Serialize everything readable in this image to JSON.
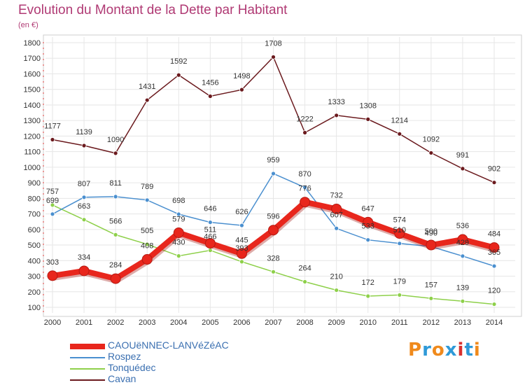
{
  "header": {
    "title": "Evolution du Montant de la Dette par Habitant",
    "subtitle": "(en €)"
  },
  "brand": {
    "text": "Proxiti",
    "colors": [
      "#f08a1c",
      "#2f9ad8",
      "#f08a1c",
      "#2f9ad8",
      "#d8312f",
      "#2f9ad8",
      "#f08a1c"
    ]
  },
  "chart_data": {
    "type": "line",
    "title": "Evolution du Montant de la Dette par Habitant",
    "subtitle": "(en €)",
    "xlabel": "",
    "ylabel": "",
    "ylim": [
      100,
      1800
    ],
    "ytick_step": 100,
    "grid": true,
    "legend_position": "bottom-left",
    "categories": [
      "2000",
      "2001",
      "2002",
      "2003",
      "2004",
      "2005",
      "2006",
      "2007",
      "2008",
      "2009",
      "2010",
      "2011",
      "2012",
      "2013",
      "2014"
    ],
    "series": [
      {
        "name": "CAOUëNNEC-LANVéZéAC",
        "color": "#e8261c",
        "values": [
          303,
          334,
          284,
          408,
          579,
          511,
          445,
          596,
          776,
          732,
          647,
          574,
          500,
          536,
          484
        ],
        "labels": [
          "303",
          "334",
          "284",
          "408",
          "579",
          "511",
          "445",
          "596",
          "776",
          "732",
          "647",
          "574",
          "500",
          "536",
          "484"
        ],
        "emphasis": true
      },
      {
        "name": "Rospez",
        "color": "#4a8fcf",
        "values": [
          699,
          807,
          811,
          789,
          698,
          646,
          626,
          959,
          870,
          607,
          533,
          510,
          490,
          429,
          365
        ],
        "labels": [
          "699",
          "807",
          "811",
          "789",
          "698",
          "646",
          "626",
          "959",
          "870",
          "607",
          "533",
          "510",
          "490",
          "429",
          "365"
        ]
      },
      {
        "name": "Tonquédec",
        "color": "#8ed04a",
        "values": [
          757,
          663,
          566,
          505,
          430,
          466,
          393,
          328,
          264,
          210,
          172,
          179,
          157,
          139,
          120
        ],
        "labels": [
          "757",
          "663",
          "566",
          "505",
          "430",
          "466",
          "393",
          "328",
          "264",
          "210",
          "172",
          "179",
          "157",
          "139",
          "120"
        ]
      },
      {
        "name": "Cavan",
        "color": "#6b1a1e",
        "values": [
          1177,
          1139,
          1090,
          1431,
          1592,
          1456,
          1498,
          1708,
          1222,
          1333,
          1308,
          1214,
          1092,
          991,
          902
        ],
        "labels": [
          "1177",
          "1139",
          "1090",
          "1431",
          "1592",
          "1456",
          "1498",
          "1708",
          "1222",
          "1333",
          "1308",
          "1214",
          "1092",
          "991",
          "902"
        ]
      }
    ]
  }
}
